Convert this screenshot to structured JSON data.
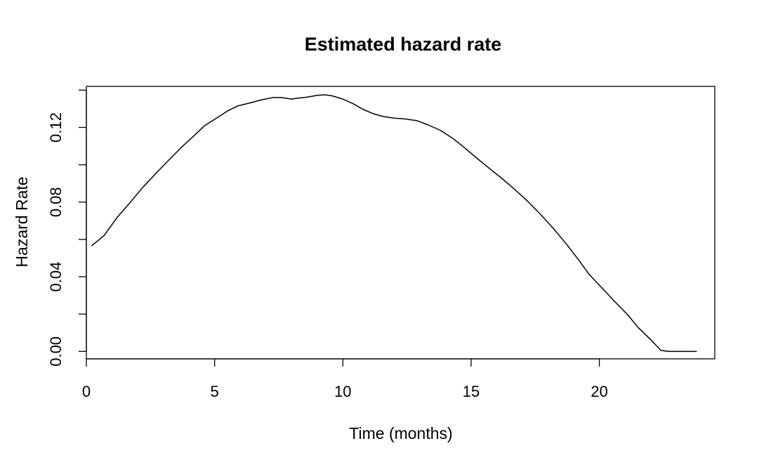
{
  "chart_data": {
    "type": "line",
    "title": "Estimated hazard rate",
    "xlabel": "Time (months)",
    "ylabel": "Hazard Rate",
    "xlim": [
      0,
      24.5
    ],
    "ylim": [
      -0.004,
      0.142
    ],
    "x_ticks": [
      0,
      5,
      10,
      15,
      20
    ],
    "x_tick_labels": [
      "0",
      "5",
      "10",
      "15",
      "20"
    ],
    "y_ticks": [
      0.0,
      0.02,
      0.04,
      0.06,
      0.08,
      0.1,
      0.12,
      0.14
    ],
    "y_tick_labels": [
      "0.00",
      "",
      "0.04",
      "",
      "0.08",
      "",
      "0.12",
      ""
    ],
    "grid": false,
    "series": [
      {
        "color": "#000000",
        "x": [
          0.2,
          0.7,
          1.2,
          1.7,
          2.2,
          2.7,
          3.2,
          3.7,
          4.2,
          4.6,
          5.1,
          5.5,
          5.9,
          6.4,
          6.8,
          7.3,
          7.6,
          8.0,
          8.2,
          8.6,
          9.0,
          9.3,
          9.6,
          10.0,
          10.4,
          10.8,
          11.2,
          11.6,
          12.0,
          12.4,
          12.9,
          13.3,
          13.8,
          14.3,
          14.7,
          15.2,
          15.7,
          16.2,
          16.7,
          17.2,
          17.7,
          18.2,
          18.7,
          19.2,
          19.6,
          20.1,
          20.6,
          21.1,
          21.5,
          22.0,
          22.4,
          22.7,
          23.0,
          23.4,
          23.8
        ],
        "y": [
          0.0565,
          0.0622,
          0.0718,
          0.0797,
          0.0879,
          0.0952,
          0.1023,
          0.1093,
          0.1156,
          0.1208,
          0.1252,
          0.1288,
          0.1315,
          0.1332,
          0.1347,
          0.1361,
          0.136,
          0.1352,
          0.1356,
          0.1362,
          0.1372,
          0.1375,
          0.1369,
          0.1352,
          0.1327,
          0.1296,
          0.1273,
          0.1258,
          0.125,
          0.1246,
          0.1236,
          0.1215,
          0.1185,
          0.114,
          0.1096,
          0.1038,
          0.0982,
          0.0927,
          0.0868,
          0.0805,
          0.0735,
          0.066,
          0.0578,
          0.0489,
          0.0413,
          0.034,
          0.0267,
          0.0197,
          0.013,
          0.0063,
          0.0005,
          0.0,
          0.0,
          0.0,
          0.0
        ]
      }
    ]
  }
}
